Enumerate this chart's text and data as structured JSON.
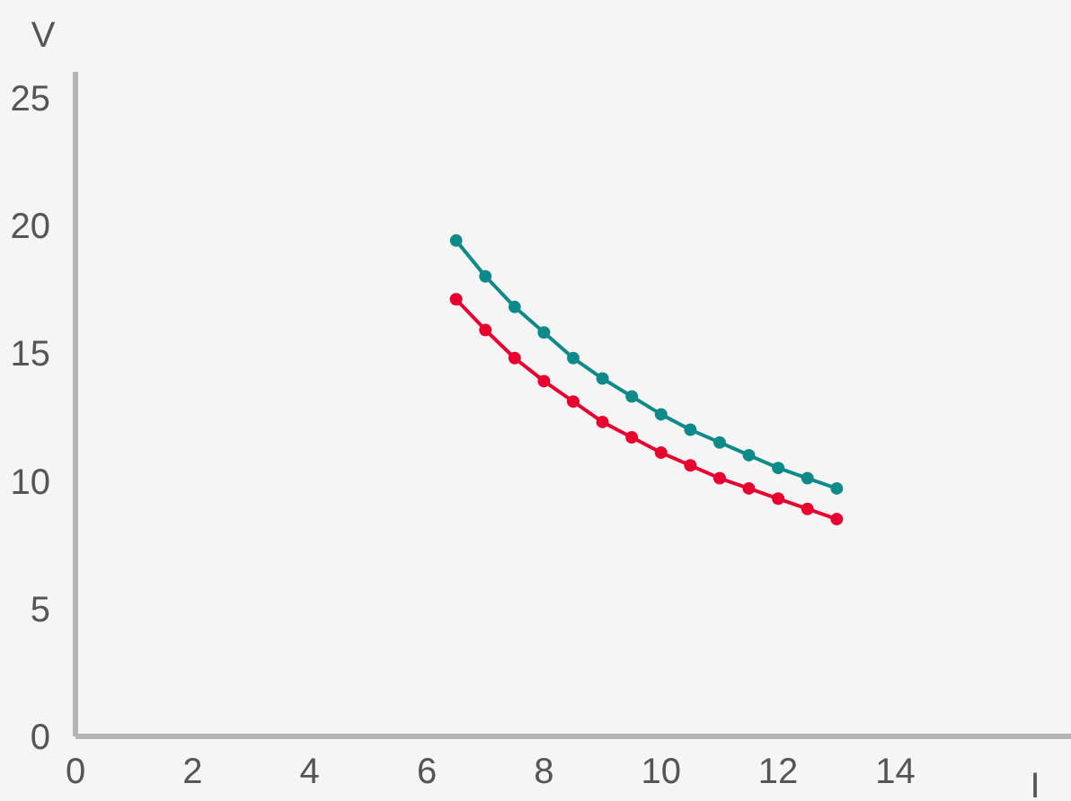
{
  "chart_data": {
    "type": "line",
    "xlabel": "I",
    "ylabel": "V",
    "x": [
      6.5,
      7,
      7.5,
      8,
      8.5,
      9,
      9.5,
      10,
      10.5,
      11,
      11.5,
      12,
      12.5,
      13
    ],
    "series": [
      {
        "color": "#0e8a8a",
        "values": [
          19.4,
          18.0,
          16.8,
          15.8,
          14.8,
          14.0,
          13.3,
          12.6,
          12.0,
          11.5,
          11.0,
          10.5,
          10.1,
          9.7
        ]
      },
      {
        "color": "#e8002f",
        "values": [
          17.1,
          15.9,
          14.8,
          13.9,
          13.1,
          12.3,
          11.7,
          11.1,
          10.6,
          10.1,
          9.7,
          9.3,
          8.9,
          8.5
        ]
      }
    ],
    "xlim": [
      0,
      17
    ],
    "xticks": [
      0,
      2,
      4,
      6,
      8,
      10,
      12,
      14
    ],
    "ylim": [
      0,
      26
    ],
    "yticks": [
      0,
      5,
      10,
      15,
      20,
      25
    ],
    "grid": false,
    "legend": false,
    "marker": "circle",
    "line_style": "solid"
  }
}
